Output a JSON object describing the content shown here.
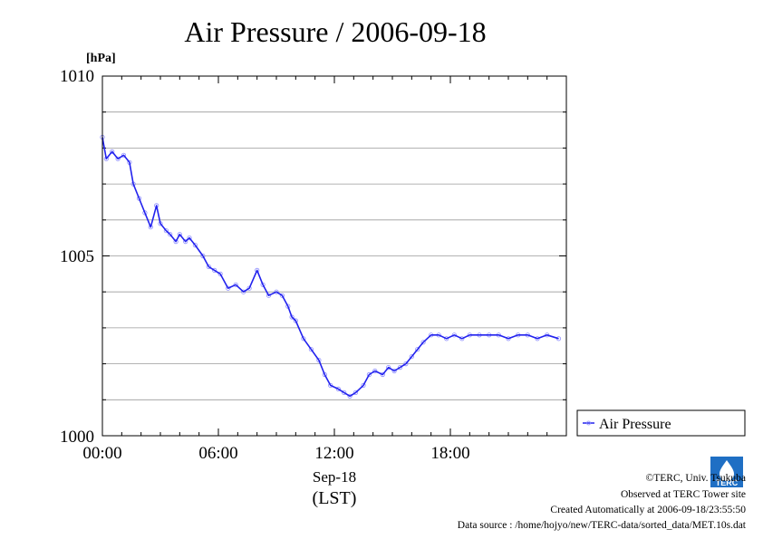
{
  "chart_data": {
    "type": "line",
    "title": "Air Pressure / 2006-09-18",
    "ylabel": "[hPa]",
    "ylim": [
      1000,
      1010
    ],
    "y_ticks": [
      "1000",
      "1005",
      "1010"
    ],
    "y_gridlines": [
      1001,
      1002,
      1003,
      1004,
      1005,
      1006,
      1007,
      1008,
      1009
    ],
    "x_tick_labels": [
      "00:00",
      "06:00",
      "12:00",
      "18:00"
    ],
    "xlabel_date": "Sep-18",
    "xlabel_zone": "(LST)",
    "xlim_hours": [
      0,
      24
    ],
    "legend_position": "right",
    "grid": true,
    "series": [
      {
        "name": "Air Pressure",
        "color": "#2222ee",
        "x": [
          0.0,
          0.2,
          0.5,
          0.8,
          1.1,
          1.4,
          1.6,
          1.9,
          2.2,
          2.5,
          2.8,
          3.0,
          3.3,
          3.5,
          3.8,
          4.0,
          4.3,
          4.5,
          4.8,
          5.2,
          5.5,
          5.8,
          6.1,
          6.5,
          6.9,
          7.3,
          7.6,
          8.0,
          8.3,
          8.6,
          9.0,
          9.3,
          9.6,
          9.8,
          10.0,
          10.4,
          10.8,
          11.2,
          11.5,
          11.8,
          12.2,
          12.5,
          12.8,
          13.1,
          13.5,
          13.8,
          14.1,
          14.5,
          14.8,
          15.1,
          15.4,
          15.7,
          16.0,
          16.3,
          16.6,
          17.0,
          17.4,
          17.8,
          18.2,
          18.6,
          19.0,
          19.5,
          20.0,
          20.5,
          21.0,
          21.5,
          22.0,
          22.5,
          23.0,
          23.6
        ],
        "values": [
          1008.3,
          1007.7,
          1007.9,
          1007.7,
          1007.8,
          1007.6,
          1007.0,
          1006.6,
          1006.2,
          1005.8,
          1006.4,
          1005.9,
          1005.7,
          1005.6,
          1005.4,
          1005.6,
          1005.4,
          1005.5,
          1005.3,
          1005.0,
          1004.7,
          1004.6,
          1004.5,
          1004.1,
          1004.2,
          1004.0,
          1004.1,
          1004.6,
          1004.2,
          1003.9,
          1004.0,
          1003.9,
          1003.6,
          1003.3,
          1003.2,
          1002.7,
          1002.4,
          1002.1,
          1001.7,
          1001.4,
          1001.3,
          1001.2,
          1001.1,
          1001.2,
          1001.4,
          1001.7,
          1001.8,
          1001.7,
          1001.9,
          1001.8,
          1001.9,
          1002.0,
          1002.2,
          1002.4,
          1002.6,
          1002.8,
          1002.8,
          1002.7,
          1002.8,
          1002.7,
          1002.8,
          1002.8,
          1002.8,
          1002.8,
          1002.7,
          1002.8,
          1002.8,
          1002.7,
          1002.8,
          1002.7
        ]
      }
    ]
  },
  "credits": {
    "line1": "©TERC, Univ. Tsukuba",
    "line2": "Observed at TERC Tower site",
    "line3": "Created Automatically at 2006-09-18/23:55:50",
    "line4": "Data source : /home/hojyo/new/TERC-data/sorted_data/MET.10s.dat",
    "logo_text": "TERC"
  }
}
